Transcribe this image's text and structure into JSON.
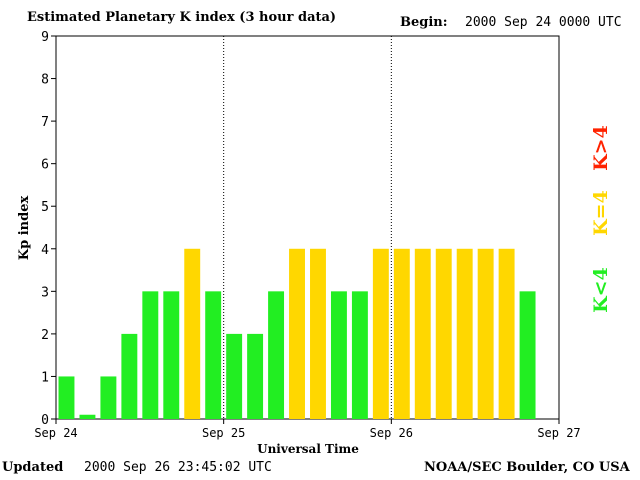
{
  "header": {
    "title": "Estimated Planetary K index (3 hour data)",
    "begin_label": "Begin:",
    "begin_value": "2000 Sep 24 0000 UTC"
  },
  "footer": {
    "updated_label": "Updated",
    "updated_value": "2000 Sep 26 23:45:02 UTC",
    "source": "NOAA/SEC Boulder, CO USA"
  },
  "colors": {
    "below4": "#22ee22",
    "equal4": "#ffd700",
    "above4": "#ff2200"
  },
  "chart_data": {
    "type": "bar",
    "title": "Estimated Planetary K index (3 hour data)",
    "xlabel": "Universal Time",
    "ylabel": "Kp index",
    "ylim": [
      0,
      9
    ],
    "y_ticks": [
      "0",
      "1",
      "2",
      "3",
      "4",
      "5",
      "6",
      "7",
      "8",
      "9"
    ],
    "x_ticks": [
      "Sep 24",
      "Sep 25",
      "Sep 26",
      "Sep 27"
    ],
    "bar_interval_hours": 3,
    "values": [
      1,
      0.1,
      1,
      2,
      3,
      3,
      4,
      3,
      2,
      2,
      3,
      4,
      4,
      3,
      3,
      4,
      4,
      4,
      4,
      4,
      4,
      4,
      3
    ],
    "legend": [
      {
        "label": "K<4",
        "color": "#22ee22"
      },
      {
        "label": "K=4",
        "color": "#ffd700"
      },
      {
        "label": "K>4",
        "color": "#ff2200"
      }
    ],
    "legend_placement": "right",
    "day_separators": "dotted"
  }
}
